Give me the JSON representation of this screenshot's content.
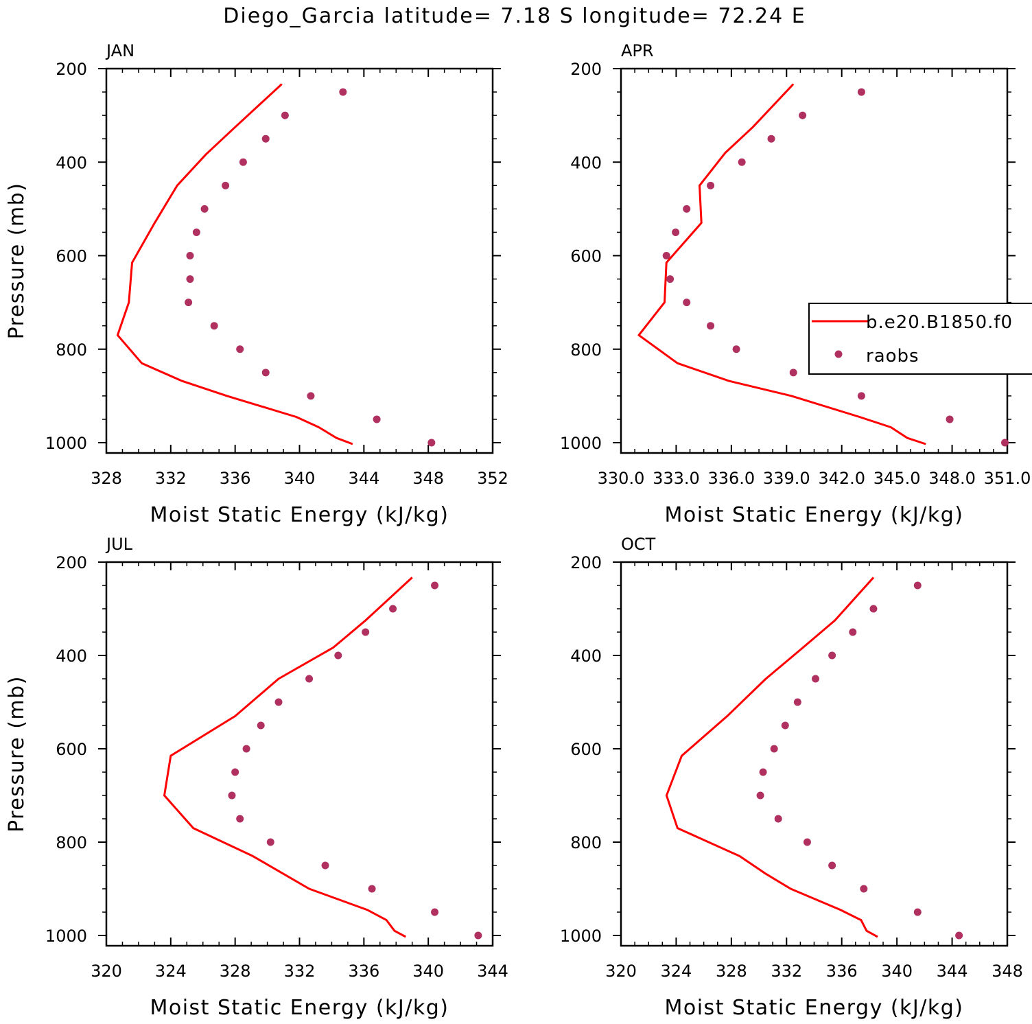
{
  "title": "Diego_Garcia  latitude= 7.18 S longitude= 72.24 E",
  "colors": {
    "model": "#ff0000",
    "obs": "#b03060",
    "axis": "#000000"
  },
  "legend": {
    "entries": [
      {
        "label": "b.e20.B1850.f0",
        "type": "line"
      },
      {
        "label": "raobs",
        "type": "marker"
      }
    ],
    "panel": 1
  },
  "chart_data": [
    {
      "type": "line",
      "panel_label": "JAN",
      "xlabel": "Moist Static Energy (kJ/kg)",
      "ylabel": "Pressure (mb)",
      "xlim": [
        328,
        352
      ],
      "xticks": [
        328,
        332,
        336,
        340,
        344,
        348,
        352
      ],
      "xtick_labels": [
        "328",
        "332",
        "336",
        "340",
        "344",
        "348",
        "352"
      ],
      "ylim": [
        200,
        1000
      ],
      "yticks": [
        200,
        400,
        600,
        800,
        1000
      ],
      "y_inverted": true,
      "series": [
        {
          "name": "b.e20.B1850.f0",
          "kind": "line",
          "points": [
            [
              338.9,
              233
            ],
            [
              336,
              325
            ],
            [
              334.2,
              383
            ],
            [
              332.4,
              450
            ],
            [
              331,
              530
            ],
            [
              329.6,
              615
            ],
            [
              329.4,
              700
            ],
            [
              328.7,
              770
            ],
            [
              330.2,
              830
            ],
            [
              332.7,
              868
            ],
            [
              335.5,
              900
            ],
            [
              339.8,
              945
            ],
            [
              341.2,
              967
            ],
            [
              342.3,
              990
            ],
            [
              343.3,
              1003
            ]
          ]
        },
        {
          "name": "raobs",
          "kind": "scatter",
          "points": [
            [
              342.7,
              250
            ],
            [
              339.1,
              300
            ],
            [
              337.9,
              350
            ],
            [
              336.5,
              400
            ],
            [
              335.4,
              450
            ],
            [
              334.1,
              500
            ],
            [
              333.6,
              550
            ],
            [
              333.2,
              600
            ],
            [
              333.2,
              650
            ],
            [
              333.1,
              700
            ],
            [
              334.7,
              750
            ],
            [
              336.3,
              800
            ],
            [
              337.9,
              850
            ],
            [
              340.7,
              900
            ],
            [
              344.8,
              950
            ],
            [
              348.2,
              1000
            ]
          ]
        }
      ]
    },
    {
      "type": "line",
      "panel_label": "APR",
      "xlabel": "Moist Static Energy (kJ/kg)",
      "ylabel": "",
      "xlim": [
        330.03,
        351.03
      ],
      "xticks": [
        330.03,
        333.03,
        336.03,
        339.03,
        342.03,
        345.03,
        348.03,
        351.03
      ],
      "xtick_labels": [
        "330.0",
        "333.0",
        "336.0",
        "339.0",
        "342.0",
        "345.0",
        "348.0",
        "351.0"
      ],
      "ylim": [
        200,
        1000
      ],
      "yticks": [
        200,
        400,
        600,
        800,
        1000
      ],
      "y_inverted": true,
      "series": [
        {
          "name": "b.e20.B1850.f0",
          "kind": "line",
          "points": [
            [
              339.4,
              233
            ],
            [
              337.2,
              325
            ],
            [
              335.7,
              380
            ],
            [
              334.3,
              450
            ],
            [
              334.4,
              530
            ],
            [
              332.5,
              615
            ],
            [
              332.4,
              700
            ],
            [
              331,
              770
            ],
            [
              333.1,
              830
            ],
            [
              335.9,
              868
            ],
            [
              339.3,
              900
            ],
            [
              343,
              945
            ],
            [
              344.7,
              967
            ],
            [
              345.6,
              990
            ],
            [
              346.6,
              1003
            ]
          ]
        },
        {
          "name": "raobs",
          "kind": "scatter",
          "points": [
            [
              343.1,
              250
            ],
            [
              339.9,
              300
            ],
            [
              338.2,
              350
            ],
            [
              336.6,
              400
            ],
            [
              334.9,
              450
            ],
            [
              333.6,
              500
            ],
            [
              333,
              550
            ],
            [
              332.5,
              600
            ],
            [
              332.7,
              650
            ],
            [
              333.6,
              700
            ],
            [
              334.9,
              750
            ],
            [
              336.3,
              800
            ],
            [
              339.4,
              850
            ],
            [
              343.1,
              900
            ],
            [
              347.9,
              950
            ],
            [
              350.9,
              1000
            ]
          ]
        }
      ]
    },
    {
      "type": "line",
      "panel_label": "JUL",
      "xlabel": "Moist Static Energy (kJ/kg)",
      "ylabel": "Pressure (mb)",
      "xlim": [
        320,
        344
      ],
      "xticks": [
        320,
        324,
        328,
        332,
        336,
        340,
        344
      ],
      "xtick_labels": [
        "320",
        "324",
        "328",
        "332",
        "336",
        "340",
        "344"
      ],
      "ylim": [
        200,
        1000
      ],
      "yticks": [
        200,
        400,
        600,
        800,
        1000
      ],
      "y_inverted": true,
      "series": [
        {
          "name": "b.e20.B1850.f0",
          "kind": "line",
          "points": [
            [
              339,
              233
            ],
            [
              336.1,
              325
            ],
            [
              334.1,
              383
            ],
            [
              330.7,
              450
            ],
            [
              328,
              530
            ],
            [
              324,
              615
            ],
            [
              323.6,
              700
            ],
            [
              325.4,
              770
            ],
            [
              329.1,
              830
            ],
            [
              331,
              868
            ],
            [
              332.6,
              900
            ],
            [
              336.2,
              945
            ],
            [
              337.4,
              967
            ],
            [
              337.9,
              990
            ],
            [
              338.6,
              1003
            ]
          ]
        },
        {
          "name": "raobs",
          "kind": "scatter",
          "points": [
            [
              340.4,
              250
            ],
            [
              337.8,
              300
            ],
            [
              336.1,
              350
            ],
            [
              334.4,
              400
            ],
            [
              332.6,
              450
            ],
            [
              330.7,
              500
            ],
            [
              329.6,
              550
            ],
            [
              328.7,
              600
            ],
            [
              328,
              650
            ],
            [
              327.8,
              700
            ],
            [
              328.3,
              750
            ],
            [
              330.2,
              800
            ],
            [
              333.6,
              850
            ],
            [
              336.5,
              900
            ],
            [
              340.4,
              950
            ],
            [
              343.1,
              1000
            ]
          ]
        }
      ]
    },
    {
      "type": "line",
      "panel_label": "OCT",
      "xlabel": "Moist Static Energy (kJ/kg)",
      "ylabel": "",
      "xlim": [
        320,
        348
      ],
      "xticks": [
        320,
        324,
        328,
        332,
        336,
        340,
        344,
        348
      ],
      "xtick_labels": [
        "320",
        "324",
        "328",
        "332",
        "336",
        "340",
        "344",
        "348"
      ],
      "ylim": [
        200,
        1000
      ],
      "yticks": [
        200,
        400,
        600,
        800,
        1000
      ],
      "y_inverted": true,
      "series": [
        {
          "name": "b.e20.B1850.f0",
          "kind": "line",
          "points": [
            [
              338.3,
              233
            ],
            [
              335.5,
              325
            ],
            [
              333.2,
              383
            ],
            [
              330.5,
              450
            ],
            [
              327.7,
              530
            ],
            [
              324.4,
              615
            ],
            [
              323.3,
              700
            ],
            [
              324.1,
              770
            ],
            [
              328.6,
              830
            ],
            [
              330.5,
              868
            ],
            [
              332.3,
              900
            ],
            [
              335.9,
              945
            ],
            [
              337.4,
              967
            ],
            [
              337.8,
              990
            ],
            [
              338.6,
              1003
            ]
          ]
        },
        {
          "name": "raobs",
          "kind": "scatter",
          "points": [
            [
              341.5,
              250
            ],
            [
              338.3,
              300
            ],
            [
              336.8,
              350
            ],
            [
              335.3,
              400
            ],
            [
              334.1,
              450
            ],
            [
              332.8,
              500
            ],
            [
              331.9,
              550
            ],
            [
              331.1,
              600
            ],
            [
              330.3,
              650
            ],
            [
              330.1,
              700
            ],
            [
              331.4,
              750
            ],
            [
              333.5,
              800
            ],
            [
              335.3,
              850
            ],
            [
              337.6,
              900
            ],
            [
              341.5,
              950
            ],
            [
              344.5,
              1000
            ]
          ]
        }
      ]
    }
  ]
}
